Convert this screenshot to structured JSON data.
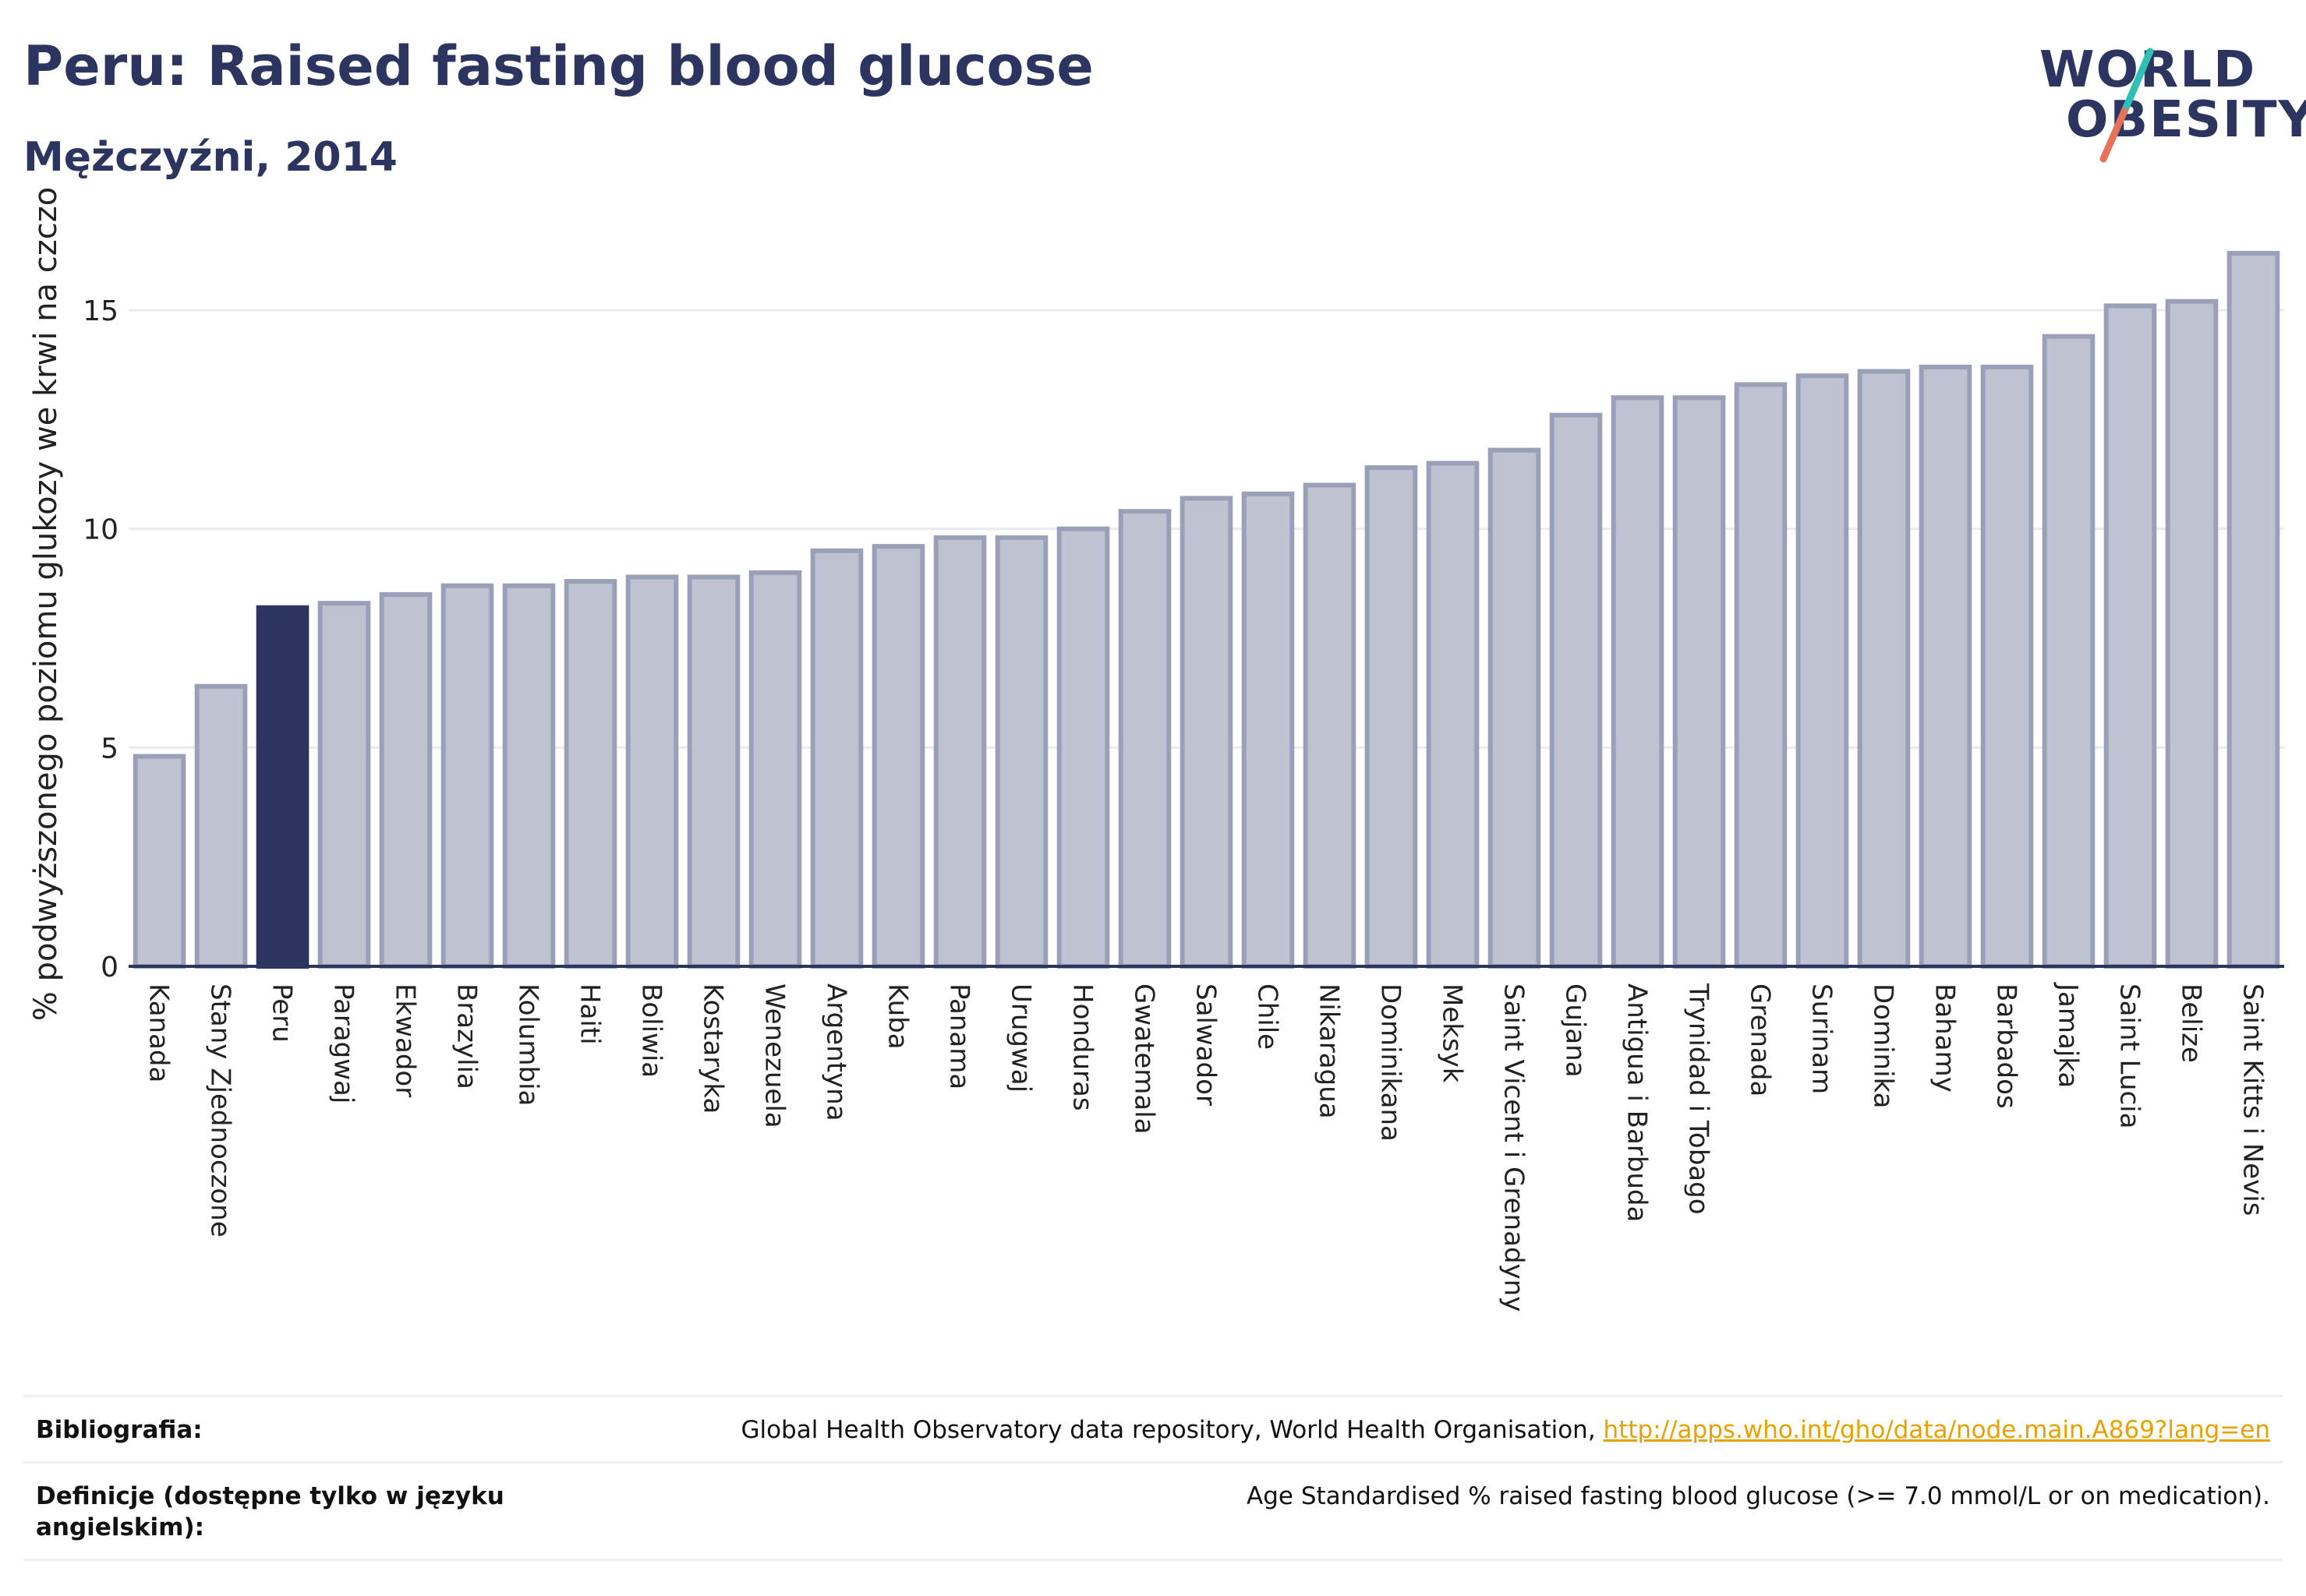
{
  "header": {
    "title": "Peru: Raised fasting blood glucose",
    "subtitle": "Mężczyźni, 2014"
  },
  "logo": {
    "line1": "WORLD",
    "line2": "OBESITY"
  },
  "colors": {
    "text": "#2b3560",
    "bar": "#bfc3d1",
    "bar_stroke": "#9aa0b8",
    "highlight": "#2b3560",
    "logo_teal": "#2fbfb5",
    "logo_coral": "#e8715a",
    "link": "#e8a200"
  },
  "chart_data": {
    "type": "bar",
    "ylabel": "% podwyższonego poziomu glukozy we krwi na czczo",
    "xlabel": "",
    "ylim": [
      0,
      17
    ],
    "yticks": [
      0,
      5,
      10,
      15
    ],
    "grid": true,
    "highlight": "Peru",
    "categories": [
      "Kanada",
      "Stany Zjednoczone",
      "Peru",
      "Paragwaj",
      "Ekwador",
      "Brazylia",
      "Kolumbia",
      "Haiti",
      "Boliwia",
      "Kostaryka",
      "Wenezuela",
      "Argentyna",
      "Kuba",
      "Panama",
      "Urugwaj",
      "Honduras",
      "Gwatemala",
      "Salwador",
      "Chile",
      "Nikaragua",
      "Dominikana",
      "Meksyk",
      "Saint Vicent i Grenadyny",
      "Gujana",
      "Antigua i Barbuda",
      "Trynidad i Tobago",
      "Grenada",
      "Surinam",
      "Dominika",
      "Bahamy",
      "Barbados",
      "Jamajka",
      "Saint Lucia",
      "Belize",
      "Saint Kitts i Nevis"
    ],
    "values": [
      4.8,
      6.4,
      8.2,
      8.3,
      8.5,
      8.7,
      8.7,
      8.8,
      8.9,
      8.9,
      9.0,
      9.5,
      9.6,
      9.8,
      9.8,
      10.0,
      10.4,
      10.7,
      10.8,
      11.0,
      11.4,
      11.5,
      11.8,
      12.6,
      13.0,
      13.0,
      13.3,
      13.5,
      13.6,
      13.7,
      13.7,
      14.4,
      15.1,
      15.2,
      16.3
    ]
  },
  "footer": {
    "bib_label": "Bibliografia:",
    "bib_text": "Global Health Observatory data repository, World Health Organisation, ",
    "bib_link": "http://apps.who.int/gho/data/node.main.A869?lang=en",
    "def_label": "Definicje (dostępne tylko w języku angielskim):",
    "def_text": "Age Standardised % raised fasting blood glucose (>= 7.0 mmol/L or on medication)."
  }
}
